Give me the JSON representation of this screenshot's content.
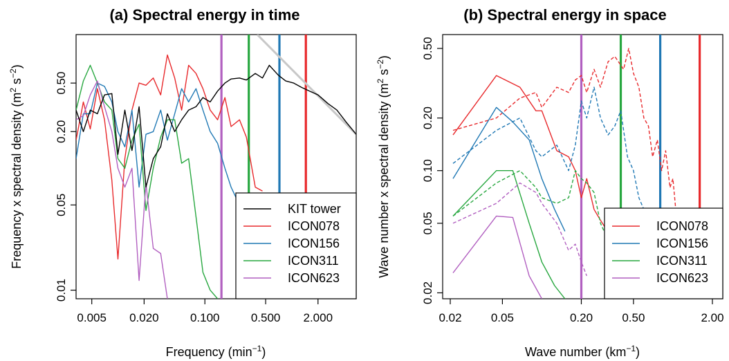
{
  "chart_data": [
    {
      "type": "line",
      "title": "(a) Spectral energy in time",
      "xlabel": "Frequency (min",
      "xlabel_sup": "−1",
      "xlabel_end": ")",
      "ylabel": "Frequency x spectral density (m",
      "ylabel_sup1": "2",
      "ylabel_mid": " s",
      "ylabel_sup2": "−2",
      "ylabel_end": ")",
      "xscale": "log",
      "yscale": "log",
      "xlim": [
        0.0033,
        5.5
      ],
      "ylim": [
        0.0085,
        1.25
      ],
      "xticks": [
        0.005,
        0.02,
        0.1,
        0.5,
        2
      ],
      "xtick_labels": [
        "0.005",
        "0.020",
        "0.100",
        "0.500",
        "2.000"
      ],
      "yticks": [
        0.01,
        0.05,
        0.2,
        0.5
      ],
      "ytick_labels": [
        "0.01",
        "0.05",
        "0.20",
        "0.50"
      ],
      "legend_position": "bottom-right",
      "legend": [
        "KIT tower",
        "ICON078",
        "ICON156",
        "ICON311",
        "ICON623"
      ],
      "vlines": [
        {
          "x": 0.155,
          "color": "#B15FC0"
        },
        {
          "x": 0.32,
          "color": "#27A73F"
        },
        {
          "x": 0.72,
          "color": "#1F78B4"
        },
        {
          "x": 1.45,
          "color": "#E8282B"
        }
      ],
      "series": [
        {
          "name": "ICON078",
          "color": "#E8282B",
          "style": "solid",
          "x": [
            0.0033,
            0.004,
            0.0048,
            0.0058,
            0.007,
            0.0085,
            0.01,
            0.012,
            0.0145,
            0.0175,
            0.021,
            0.0255,
            0.031,
            0.037,
            0.045,
            0.054,
            0.065,
            0.079,
            0.095,
            0.115,
            0.14,
            0.17,
            0.2,
            0.25,
            0.3,
            0.38,
            0.46
          ],
          "y": [
            0.17,
            0.35,
            0.21,
            0.45,
            0.25,
            0.08,
            0.018,
            0.12,
            0.3,
            0.5,
            0.48,
            0.55,
            0.4,
            0.85,
            0.55,
            0.3,
            0.7,
            0.6,
            0.45,
            0.3,
            0.25,
            0.38,
            0.22,
            0.25,
            0.18,
            0.07,
            0.065
          ]
        },
        {
          "name": "ICON156",
          "color": "#1F78B4",
          "style": "solid",
          "x": [
            0.0033,
            0.004,
            0.0048,
            0.0058,
            0.007,
            0.0085,
            0.01,
            0.012,
            0.0145,
            0.0175,
            0.021,
            0.0255,
            0.031,
            0.037,
            0.045,
            0.054,
            0.065,
            0.079,
            0.095,
            0.115,
            0.14,
            0.17,
            0.2,
            0.25,
            0.3
          ],
          "y": [
            0.12,
            0.28,
            0.28,
            0.5,
            0.47,
            0.35,
            0.2,
            0.15,
            0.3,
            0.07,
            0.19,
            0.2,
            0.3,
            0.17,
            0.28,
            0.45,
            0.35,
            0.45,
            0.3,
            0.2,
            0.16,
            0.1,
            0.07,
            0.05,
            0.045
          ]
        },
        {
          "name": "ICON311",
          "color": "#27A73F",
          "style": "solid",
          "x": [
            0.0033,
            0.004,
            0.0048,
            0.0058,
            0.007,
            0.0085,
            0.01,
            0.012,
            0.0145,
            0.0175,
            0.021,
            0.0255,
            0.031,
            0.037,
            0.045,
            0.054,
            0.065,
            0.079,
            0.095,
            0.115,
            0.14
          ],
          "y": [
            0.3,
            0.52,
            0.7,
            0.5,
            0.35,
            0.3,
            0.12,
            0.1,
            0.17,
            0.23,
            0.045,
            0.1,
            0.18,
            0.25,
            0.25,
            0.11,
            0.12,
            0.04,
            0.014,
            0.01,
            0.0085
          ]
        },
        {
          "name": "ICON623",
          "color": "#B15FC0",
          "style": "solid",
          "x": [
            0.0033,
            0.004,
            0.0048,
            0.0058,
            0.007,
            0.0085,
            0.01,
            0.012,
            0.0145,
            0.0175,
            0.021,
            0.0255,
            0.031,
            0.037
          ],
          "y": [
            0.25,
            0.27,
            0.4,
            0.52,
            0.32,
            0.2,
            0.1,
            0.07,
            0.1,
            0.012,
            0.075,
            0.022,
            0.02,
            0.0085
          ]
        },
        {
          "name": "KIT tower",
          "color": "#000000",
          "style": "solid",
          "x": [
            0.0033,
            0.004,
            0.0048,
            0.0058,
            0.007,
            0.0085,
            0.01,
            0.012,
            0.0145,
            0.0175,
            0.021,
            0.0255,
            0.031,
            0.037,
            0.045,
            0.054,
            0.065,
            0.079,
            0.095,
            0.115,
            0.14,
            0.17,
            0.2,
            0.25,
            0.3,
            0.38,
            0.46,
            0.55,
            0.7,
            0.85,
            1.05,
            1.3,
            1.6,
            2.0,
            2.6,
            3.3,
            4.2,
            5.5
          ],
          "y": [
            0.3,
            0.2,
            0.3,
            0.28,
            0.4,
            0.41,
            0.13,
            0.3,
            0.14,
            0.32,
            0.07,
            0.12,
            0.15,
            0.28,
            0.2,
            0.25,
            0.3,
            0.32,
            0.38,
            0.35,
            0.43,
            0.5,
            0.54,
            0.55,
            0.53,
            0.6,
            0.55,
            0.7,
            0.58,
            0.52,
            0.5,
            0.46,
            0.43,
            0.4,
            0.34,
            0.3,
            0.24,
            0.19
          ]
        }
      ],
      "reference_line": {
        "color": "#C8C8C8",
        "x": [
          0.4,
          5.5
        ],
        "y": [
          1.25,
          0.19
        ]
      }
    },
    {
      "type": "line",
      "title": "(b) Spectral energy in space",
      "xlabel": "Wave number (km",
      "xlabel_sup": "−1",
      "xlabel_end": ")",
      "ylabel": "Wave number x spectral density (m",
      "ylabel_sup1": "2",
      "ylabel_mid": " s",
      "ylabel_sup2": "−2",
      "ylabel_end": ")",
      "xscale": "log",
      "yscale": "log",
      "xlim": [
        0.0175,
        2.4
      ],
      "ylim": [
        0.0185,
        0.6
      ],
      "xticks": [
        0.02,
        0.05,
        0.2,
        0.5,
        2
      ],
      "xtick_labels": [
        "0.02",
        "0.05",
        "0.20",
        "0.50",
        "2.00"
      ],
      "yticks": [
        0.02,
        0.05,
        0.1,
        0.2,
        0.5
      ],
      "ytick_labels": [
        "0.02",
        "0.05",
        "0.10",
        "0.20",
        "0.50"
      ],
      "legend_position": "bottom-right",
      "legend": [
        "ICON078",
        "ICON156",
        "ICON311",
        "ICON623"
      ],
      "vlines": [
        {
          "x": 0.2,
          "color": "#B15FC0"
        },
        {
          "x": 0.4,
          "color": "#27A73F"
        },
        {
          "x": 0.8,
          "color": "#1F78B4"
        },
        {
          "x": 1.6,
          "color": "#E8282B"
        }
      ],
      "series": [
        {
          "name": "ICON078",
          "color": "#E8282B",
          "style": "solid",
          "x": [
            0.021,
            0.045,
            0.068,
            0.09,
            0.1,
            0.13,
            0.16,
            0.18,
            0.2,
            0.22,
            0.25,
            0.28,
            0.3
          ],
          "y": [
            0.16,
            0.35,
            0.3,
            0.22,
            0.22,
            0.13,
            0.12,
            0.1,
            0.07,
            0.09,
            0.06,
            0.052,
            0.048
          ]
        },
        {
          "name": "ICON078",
          "color": "#E8282B",
          "style": "dashed",
          "x": [
            0.021,
            0.045,
            0.068,
            0.09,
            0.1,
            0.13,
            0.16,
            0.18,
            0.2,
            0.22,
            0.25,
            0.28,
            0.32,
            0.36,
            0.42,
            0.46,
            0.5,
            0.55,
            0.6,
            0.65,
            0.7,
            0.76,
            0.82,
            0.88,
            0.95,
            1.0,
            1.05,
            1.12
          ],
          "y": [
            0.17,
            0.2,
            0.26,
            0.28,
            0.23,
            0.3,
            0.28,
            0.33,
            0.35,
            0.28,
            0.38,
            0.3,
            0.42,
            0.45,
            0.38,
            0.5,
            0.36,
            0.3,
            0.2,
            0.18,
            0.12,
            0.15,
            0.1,
            0.13,
            0.08,
            0.09,
            0.06,
            0.055
          ]
        },
        {
          "name": "ICON156",
          "color": "#1F78B4",
          "style": "solid",
          "x": [
            0.021,
            0.045,
            0.06,
            0.08,
            0.1,
            0.125,
            0.15
          ],
          "y": [
            0.09,
            0.23,
            0.19,
            0.15,
            0.09,
            0.06,
            0.045
          ]
        },
        {
          "name": "ICON156",
          "color": "#1F78B4",
          "style": "dashed",
          "x": [
            0.021,
            0.045,
            0.068,
            0.09,
            0.1,
            0.13,
            0.16,
            0.18,
            0.2,
            0.22,
            0.25,
            0.28,
            0.32,
            0.36,
            0.4,
            0.45,
            0.5,
            0.55,
            0.6,
            0.65
          ],
          "y": [
            0.11,
            0.17,
            0.2,
            0.13,
            0.12,
            0.14,
            0.1,
            0.14,
            0.25,
            0.2,
            0.3,
            0.2,
            0.16,
            0.18,
            0.22,
            0.12,
            0.1,
            0.07,
            0.06,
            0.055
          ]
        },
        {
          "name": "ICON311",
          "color": "#27A73F",
          "style": "solid",
          "x": [
            0.021,
            0.045,
            0.06,
            0.08,
            0.1,
            0.125,
            0.15
          ],
          "y": [
            0.055,
            0.1,
            0.1,
            0.05,
            0.03,
            0.022,
            0.0185
          ]
        },
        {
          "name": "ICON311",
          "color": "#27A73F",
          "style": "dashed",
          "x": [
            0.021,
            0.045,
            0.068,
            0.09,
            0.1,
            0.13,
            0.16,
            0.18,
            0.2,
            0.22,
            0.25,
            0.28,
            0.32,
            0.36
          ],
          "y": [
            0.055,
            0.085,
            0.1,
            0.08,
            0.07,
            0.065,
            0.07,
            0.1,
            0.09,
            0.085,
            0.075,
            0.05,
            0.04,
            0.035
          ]
        },
        {
          "name": "ICON623",
          "color": "#B15FC0",
          "style": "solid",
          "x": [
            0.021,
            0.045,
            0.06,
            0.08,
            0.1
          ],
          "y": [
            0.026,
            0.055,
            0.054,
            0.025,
            0.0185
          ]
        },
        {
          "name": "ICON623",
          "color": "#B15FC0",
          "style": "dashed",
          "x": [
            0.021,
            0.045,
            0.068,
            0.09,
            0.1,
            0.13,
            0.16,
            0.18,
            0.2,
            0.22
          ],
          "y": [
            0.05,
            0.065,
            0.085,
            0.075,
            0.065,
            0.05,
            0.035,
            0.038,
            0.03,
            0.025
          ]
        }
      ]
    }
  ]
}
